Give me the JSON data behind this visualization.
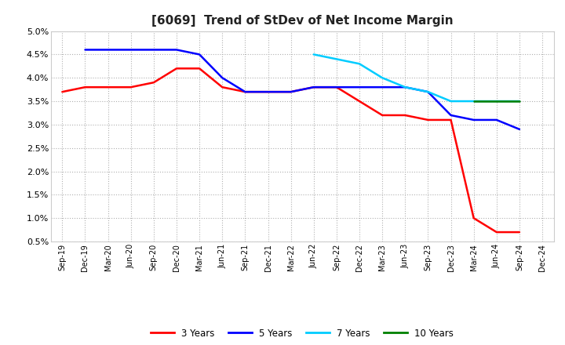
{
  "title": "[6069]  Trend of StDev of Net Income Margin",
  "background_color": "#ffffff",
  "plot_bg_color": "#ffffff",
  "grid_color": "#b0b0b0",
  "x_labels": [
    "Sep-19",
    "Dec-19",
    "Mar-20",
    "Jun-20",
    "Sep-20",
    "Dec-20",
    "Mar-21",
    "Jun-21",
    "Sep-21",
    "Dec-21",
    "Mar-22",
    "Jun-22",
    "Sep-22",
    "Dec-22",
    "Mar-23",
    "Jun-23",
    "Sep-23",
    "Dec-23",
    "Mar-24",
    "Jun-24",
    "Sep-24",
    "Dec-24"
  ],
  "ylim": [
    0.005,
    0.05
  ],
  "yticks": [
    0.005,
    0.01,
    0.015,
    0.02,
    0.025,
    0.03,
    0.035,
    0.04,
    0.045,
    0.05
  ],
  "y3": [
    0.037,
    0.038,
    0.038,
    0.038,
    0.039,
    0.042,
    0.042,
    0.038,
    0.037,
    0.037,
    0.037,
    0.038,
    0.038,
    0.035,
    0.032,
    0.032,
    0.031,
    0.031,
    0.01,
    0.007,
    0.007,
    null
  ],
  "y5": [
    null,
    0.046,
    0.046,
    0.046,
    0.046,
    0.046,
    0.045,
    0.04,
    0.037,
    0.037,
    0.037,
    0.038,
    0.038,
    0.038,
    0.038,
    0.038,
    0.037,
    0.032,
    0.031,
    0.031,
    0.029,
    null
  ],
  "y7": [
    null,
    null,
    null,
    null,
    null,
    null,
    null,
    null,
    null,
    null,
    null,
    0.045,
    0.044,
    0.043,
    0.04,
    0.038,
    0.037,
    0.035,
    0.035,
    0.035,
    0.035,
    null
  ],
  "y10": [
    null,
    null,
    null,
    null,
    null,
    null,
    null,
    null,
    null,
    null,
    null,
    null,
    null,
    null,
    null,
    null,
    null,
    null,
    0.035,
    0.035,
    0.035,
    null
  ],
  "color_3y": "#ff0000",
  "color_5y": "#0000ff",
  "color_7y": "#00ccff",
  "color_10y": "#008000",
  "lw": 1.8,
  "legend_entries": [
    "3 Years",
    "5 Years",
    "7 Years",
    "10 Years"
  ],
  "legend_colors": [
    "#ff0000",
    "#0000ff",
    "#00ccff",
    "#008000"
  ]
}
